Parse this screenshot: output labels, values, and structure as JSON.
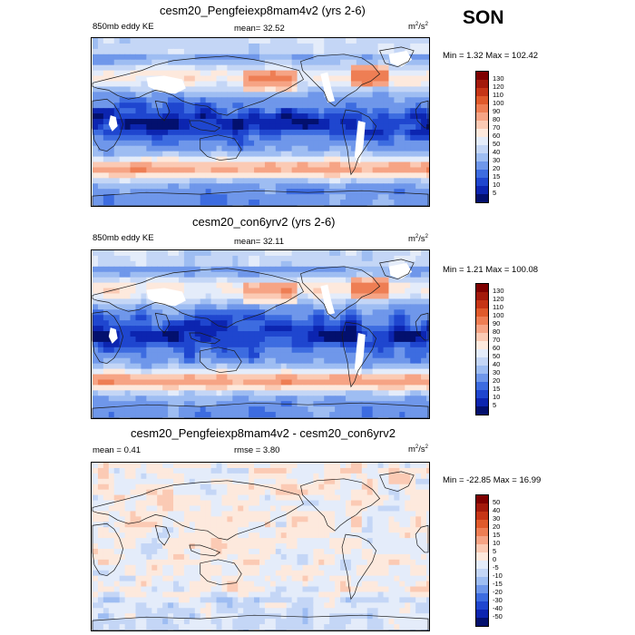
{
  "season": "SON",
  "panels": [
    {
      "title": "cesm20_Pengfeiexp8mam4v2 (yrs 2-6)",
      "left_label": "850mb eddy KE",
      "center_label": "mean=  32.52",
      "units_base": "m",
      "units_exp1": "2",
      "units_mid": "/s",
      "units_exp2": "2",
      "minmax": "Min =   1.32 Max = 102.42",
      "levels": [
        "130",
        "120",
        "110",
        "100",
        "90",
        "80",
        "70",
        "60",
        "50",
        "40",
        "30",
        "20",
        "15",
        "10",
        "5"
      ],
      "colors": [
        "#7f0000",
        "#a31a0b",
        "#c63516",
        "#e05a2b",
        "#ee7e54",
        "#f6a485",
        "#fbcab4",
        "#fde9dd",
        "#e4ecfa",
        "#c4d6f6",
        "#9ebdf2",
        "#6f97ea",
        "#3d6ce0",
        "#1f46cf",
        "#0c25b0",
        "#03106e"
      ],
      "field": "ke"
    },
    {
      "title": "cesm20_con6yrv2 (yrs 2-6)",
      "left_label": "850mb eddy KE",
      "center_label": "mean=  32.11",
      "units_base": "m",
      "units_exp1": "2",
      "units_mid": "/s",
      "units_exp2": "2",
      "minmax": "Min =   1.21 Max = 100.08",
      "levels": [
        "130",
        "120",
        "110",
        "100",
        "90",
        "80",
        "70",
        "60",
        "50",
        "40",
        "30",
        "20",
        "15",
        "10",
        "5"
      ],
      "colors": [
        "#7f0000",
        "#a31a0b",
        "#c63516",
        "#e05a2b",
        "#ee7e54",
        "#f6a485",
        "#fbcab4",
        "#fde9dd",
        "#e4ecfa",
        "#c4d6f6",
        "#9ebdf2",
        "#6f97ea",
        "#3d6ce0",
        "#1f46cf",
        "#0c25b0",
        "#03106e"
      ],
      "field": "ke"
    },
    {
      "title": "cesm20_Pengfeiexp8mam4v2 - cesm20_con6yrv2",
      "left_label": "mean =   0.41",
      "center_label": "rmse =   3.80",
      "units_base": "m",
      "units_exp1": "2",
      "units_mid": "/s",
      "units_exp2": "2",
      "minmax": "Min = -22.85 Max =  16.99",
      "levels": [
        "50",
        "40",
        "30",
        "20",
        "15",
        "10",
        "5",
        "0",
        "-5",
        "-10",
        "-15",
        "-20",
        "-30",
        "-40",
        "-50"
      ],
      "colors": [
        "#7f0000",
        "#a31a0b",
        "#c63516",
        "#e05a2b",
        "#ee7e54",
        "#f6a485",
        "#fbcab4",
        "#fde9dd",
        "#e4ecfa",
        "#c4d6f6",
        "#9ebdf2",
        "#6f97ea",
        "#3d6ce0",
        "#1f46cf",
        "#0c25b0",
        "#03106e"
      ],
      "field": "diff"
    }
  ]
}
